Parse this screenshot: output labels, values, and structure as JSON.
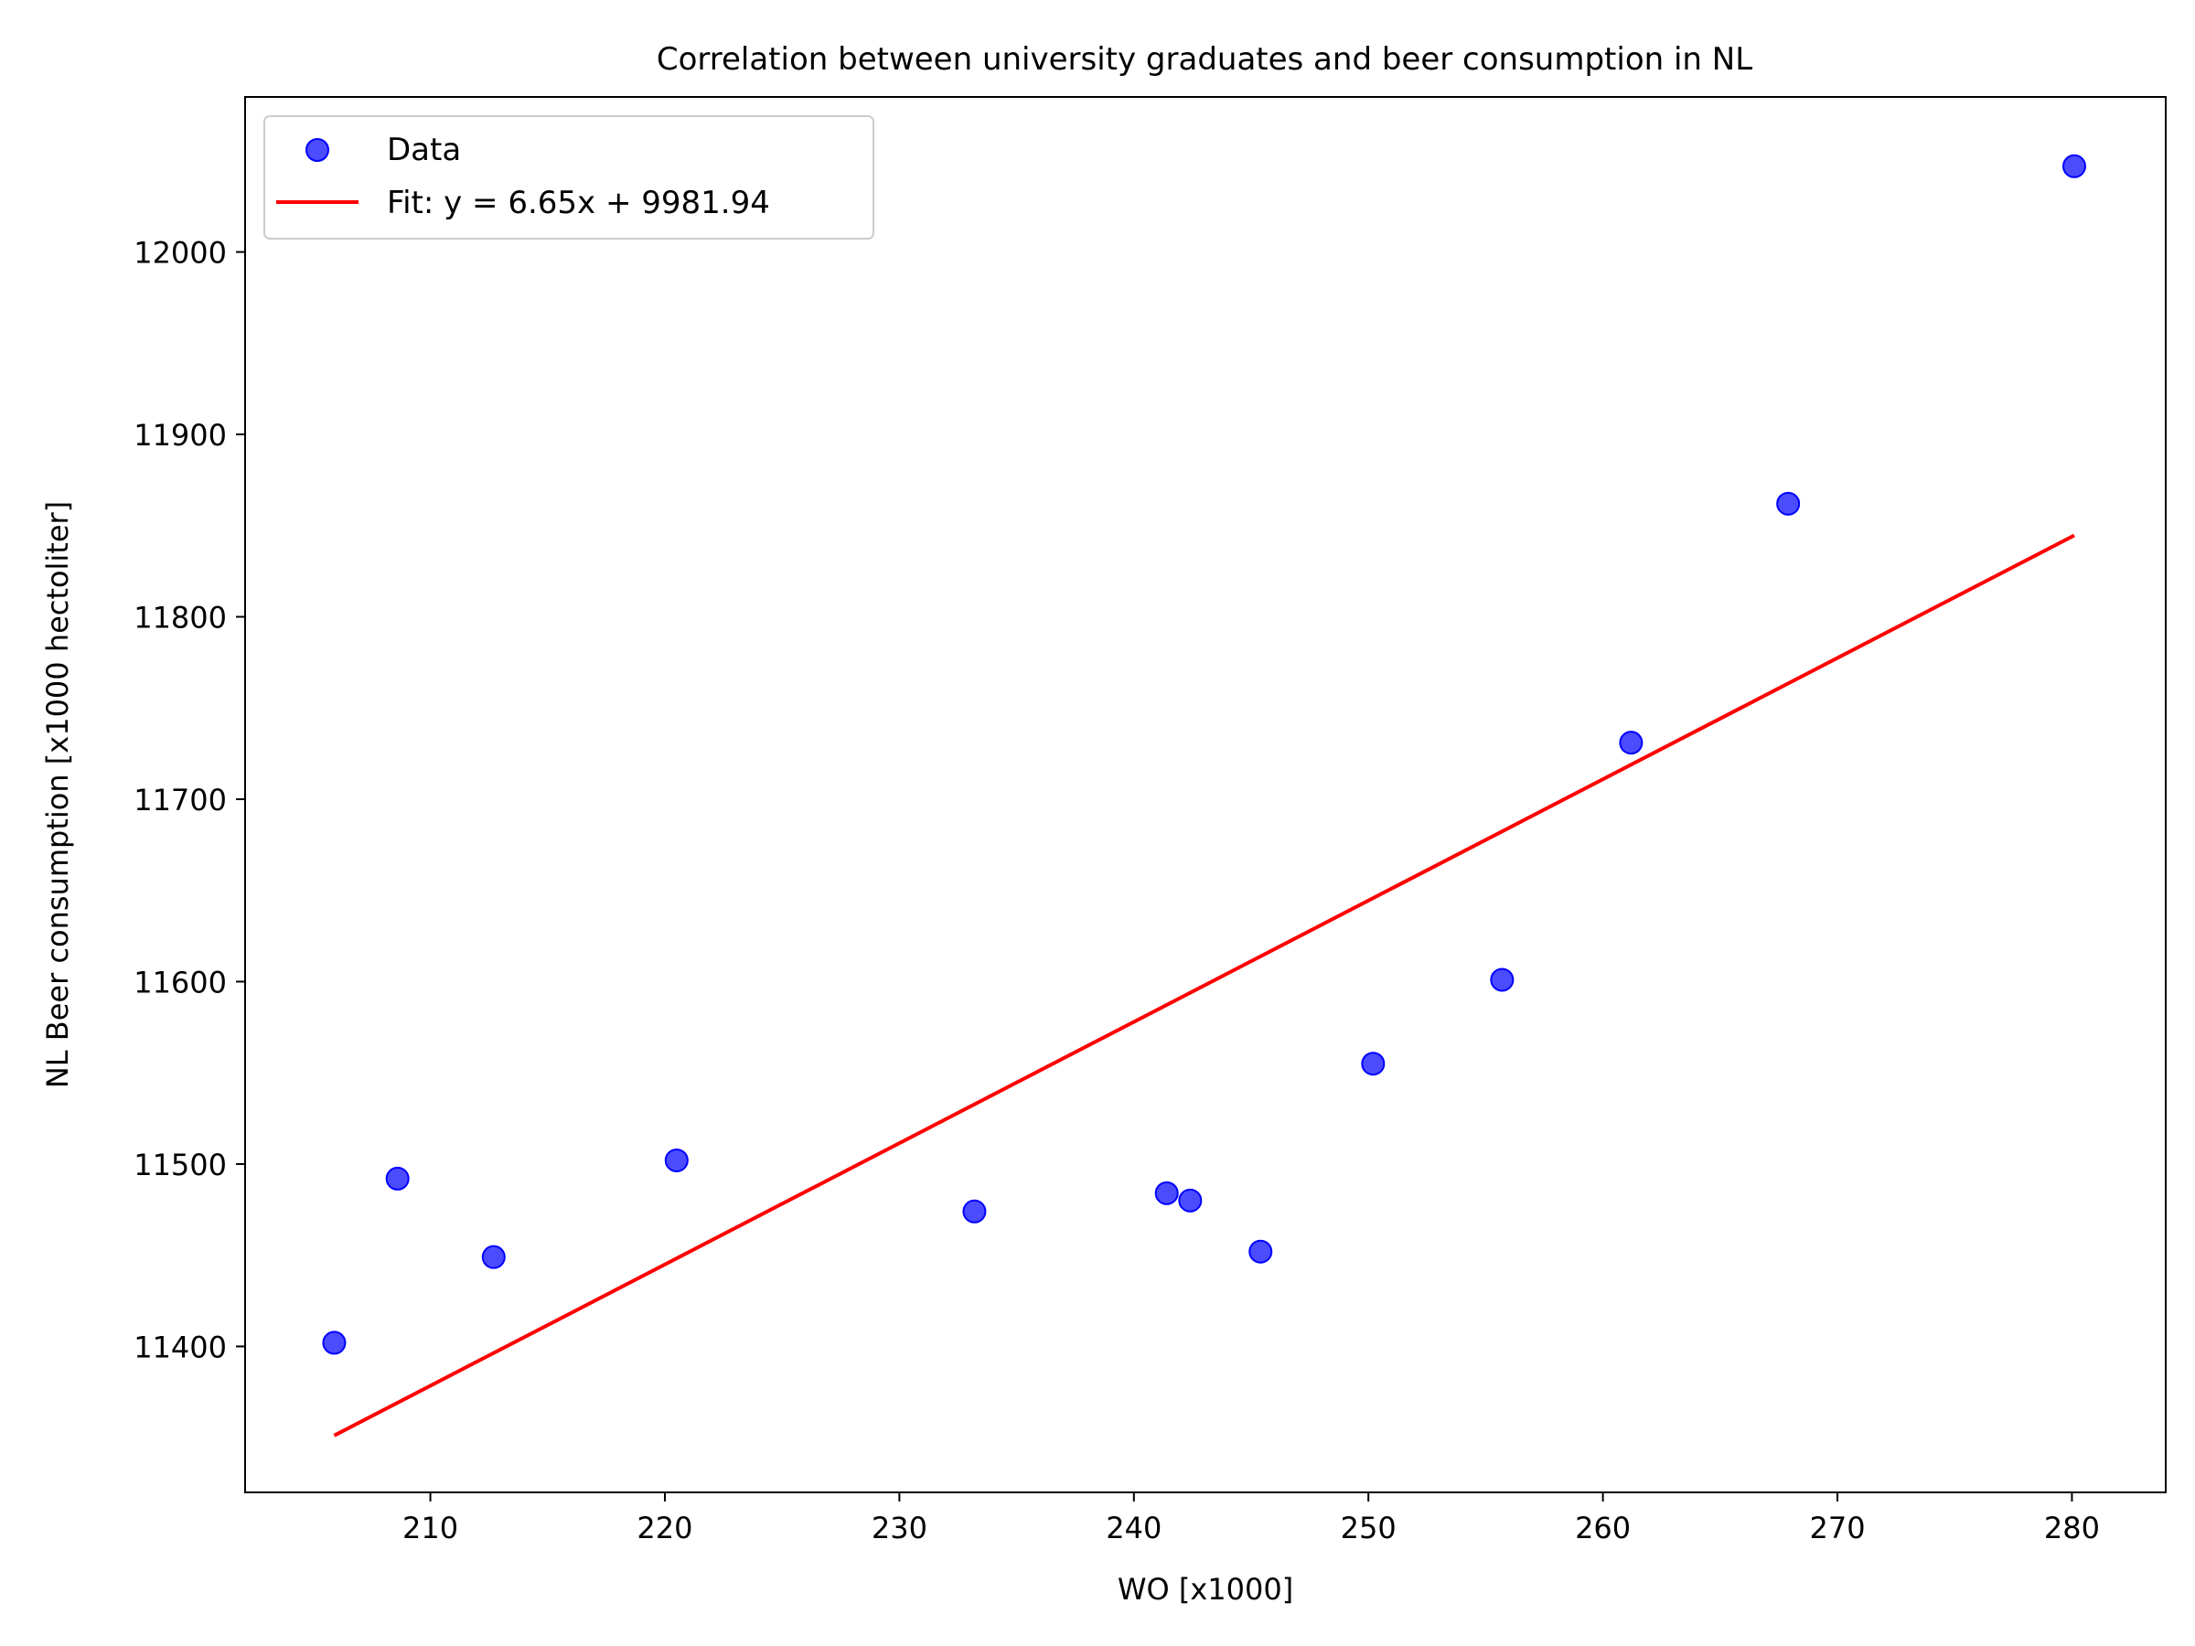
{
  "chart_data": {
    "type": "scatter",
    "title": "Correlation between university graduates and beer consumption in NL",
    "xlabel": "WO [x1000]",
    "ylabel": "NL Beer consumption [x1000 hectoliter]",
    "xlim": [
      202.1,
      284.0
    ],
    "ylim": [
      11320.0,
      12085.0
    ],
    "xticks": [
      210,
      220,
      230,
      240,
      250,
      260,
      270,
      280
    ],
    "yticks": [
      11400,
      11500,
      11600,
      11700,
      11800,
      11900,
      12000
    ],
    "grid": false,
    "legend_position": "top-left",
    "series": [
      {
        "name": "Data",
        "kind": "scatter",
        "color": "#0000ff",
        "points": [
          {
            "x": 205.9,
            "y": 11402
          },
          {
            "x": 208.6,
            "y": 11492
          },
          {
            "x": 212.7,
            "y": 11449
          },
          {
            "x": 220.5,
            "y": 11502
          },
          {
            "x": 233.2,
            "y": 11474
          },
          {
            "x": 241.4,
            "y": 11484
          },
          {
            "x": 242.4,
            "y": 11480
          },
          {
            "x": 245.4,
            "y": 11452
          },
          {
            "x": 250.2,
            "y": 11555
          },
          {
            "x": 255.7,
            "y": 11601
          },
          {
            "x": 261.2,
            "y": 11731
          },
          {
            "x": 267.9,
            "y": 11862
          },
          {
            "x": 280.1,
            "y": 12047
          }
        ]
      },
      {
        "name": "Fit: y = 6.65x + 9981.94",
        "kind": "line",
        "color": "#ff0000",
        "slope": 6.65,
        "intercept": 9981.94,
        "x_range": [
          205.9,
          280.1
        ]
      }
    ]
  }
}
